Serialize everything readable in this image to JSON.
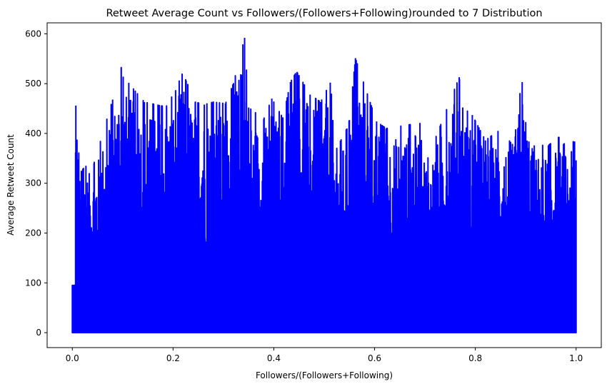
{
  "chart_data": {
    "type": "line",
    "title": "Retweet Average Count vs Followers/(Followers+Following)rounded to 7 Distribution",
    "xlabel": "Followers/(Followers+Following)",
    "ylabel": "Average Retweet Count",
    "xlim": [
      -0.05,
      1.05
    ],
    "ylim": [
      -30,
      622
    ],
    "xticks": [
      0.0,
      0.2,
      0.4,
      0.6,
      0.8,
      1.0
    ],
    "xtick_labels": [
      "0.0",
      "0.2",
      "0.4",
      "0.6",
      "0.8",
      "1.0"
    ],
    "yticks": [
      0,
      100,
      200,
      300,
      400,
      500,
      600
    ],
    "ytick_labels": [
      "0",
      "100",
      "200",
      "300",
      "400",
      "500",
      "600"
    ],
    "grid": false,
    "legend": "none",
    "series": [
      {
        "color": "#0000ff",
        "note_peaks_x": [
          0.001,
          0.007,
          0.018,
          0.027,
          0.043,
          0.08,
          0.097,
          0.101,
          0.143,
          0.178,
          0.187,
          0.205,
          0.218,
          0.226,
          0.244,
          0.262,
          0.28,
          0.304,
          0.32,
          0.342,
          0.35,
          0.38,
          0.396,
          0.418,
          0.433,
          0.442,
          0.446,
          0.472,
          0.493,
          0.512,
          0.525,
          0.545,
          0.55,
          0.562,
          0.604,
          0.623,
          0.69,
          0.706,
          0.768,
          0.775,
          0.794,
          0.82,
          0.845,
          0.87,
          0.893,
          0.917,
          0.945,
          0.966,
          0.975,
          0.997,
          1.0
        ],
        "note_peaks_y": [
          14,
          456,
          325,
          335,
          340,
          468,
          533,
          514,
          463,
          455,
          455,
          487,
          520,
          506,
          463,
          458,
          463,
          460,
          501,
          592,
          452,
          429,
          470,
          431,
          503,
          519,
          523,
          478,
          463,
          502,
          370,
          410,
          427,
          551,
          424,
          410,
          421,
          352,
          513,
          452,
          437,
          386,
          405,
          383,
          503,
          376,
          376,
          393,
          379,
          384,
          346
        ]
      }
    ]
  }
}
